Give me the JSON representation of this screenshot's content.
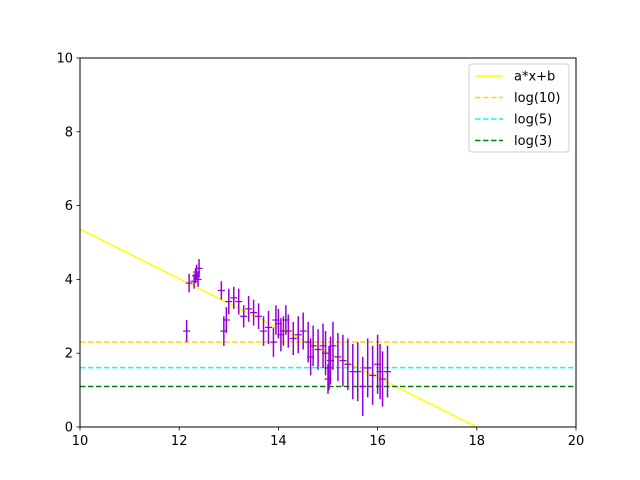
{
  "chart_data": {
    "type": "scatter",
    "title": "",
    "xlabel": "",
    "ylabel": "",
    "xlim": [
      10,
      20
    ],
    "ylim": [
      0,
      10
    ],
    "grid": false,
    "legend_placement": "top-right",
    "x_ticks": [
      10,
      12,
      14,
      16,
      18,
      20
    ],
    "y_ticks": [
      0,
      2,
      4,
      6,
      8,
      10
    ],
    "lines": [
      {
        "name": "a*x+b",
        "kind": "fit",
        "slope": -0.67,
        "intercept": 12.06,
        "color": "#ffff00",
        "dash": "solid"
      },
      {
        "name": "log(10)",
        "kind": "hline",
        "y": 2.303,
        "color": "#ffd700",
        "dash": "dashed"
      },
      {
        "name": "log(5)",
        "kind": "hline",
        "y": 1.609,
        "color": "#00ffff",
        "dash": "dashed"
      },
      {
        "name": "log(3)",
        "kind": "hline",
        "y": 1.099,
        "color": "#008000",
        "dash": "dashed"
      }
    ],
    "points": {
      "color": "#9400d3",
      "x": [
        12.15,
        12.2,
        12.3,
        12.33,
        12.35,
        12.38,
        12.4,
        12.85,
        12.9,
        12.95,
        13.0,
        13.1,
        13.2,
        13.3,
        13.4,
        13.5,
        13.6,
        13.7,
        13.8,
        13.9,
        13.95,
        14.0,
        14.05,
        14.1,
        14.15,
        14.2,
        14.3,
        14.4,
        14.5,
        14.6,
        14.65,
        14.7,
        14.8,
        14.9,
        14.95,
        15.0,
        15.02,
        15.05,
        15.1,
        15.2,
        15.3,
        15.4,
        15.5,
        15.6,
        15.7,
        15.8,
        15.9,
        16.0,
        16.05,
        16.1,
        16.2
      ],
      "y": [
        2.6,
        3.9,
        3.95,
        4.1,
        4.2,
        4.0,
        4.3,
        3.7,
        2.6,
        2.9,
        3.4,
        3.5,
        3.4,
        3.0,
        3.2,
        3.1,
        3.0,
        2.6,
        2.7,
        2.3,
        2.9,
        2.8,
        2.5,
        2.6,
        2.9,
        2.6,
        2.4,
        2.5,
        2.6,
        2.3,
        1.9,
        2.2,
        2.1,
        2.2,
        2.0,
        1.3,
        1.6,
        1.8,
        2.2,
        1.9,
        1.8,
        1.7,
        1.5,
        1.5,
        1.1,
        1.6,
        1.4,
        1.7,
        1.5,
        1.3,
        1.5
      ],
      "yerr": [
        0.3,
        0.25,
        0.2,
        0.2,
        0.2,
        0.2,
        0.25,
        0.25,
        0.4,
        0.35,
        0.35,
        0.3,
        0.35,
        0.3,
        0.35,
        0.35,
        0.35,
        0.4,
        0.45,
        0.4,
        0.4,
        0.4,
        0.45,
        0.4,
        0.4,
        0.45,
        0.45,
        0.5,
        0.5,
        0.55,
        0.5,
        0.55,
        0.55,
        0.6,
        0.6,
        0.4,
        0.6,
        0.65,
        0.65,
        0.65,
        0.7,
        0.7,
        0.75,
        0.8,
        0.8,
        0.8,
        0.8,
        0.8,
        0.75,
        0.75,
        0.7
      ]
    }
  }
}
